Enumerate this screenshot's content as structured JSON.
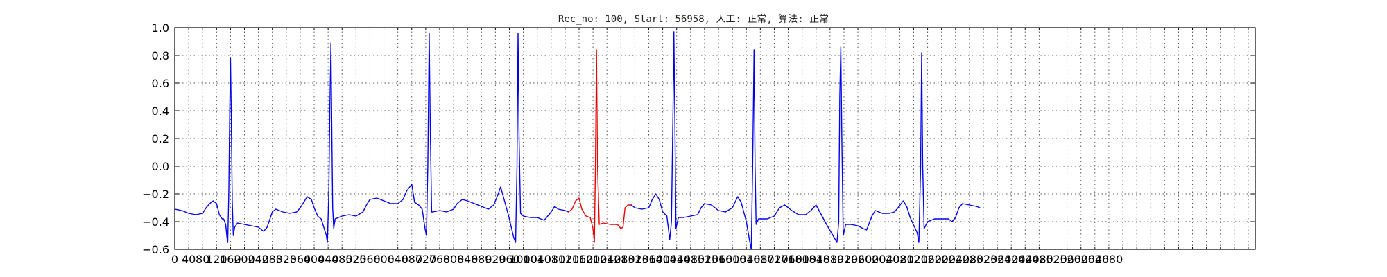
{
  "chart_data": {
    "type": "line",
    "title": "Rec_no: 100, Start: 56958, 人工: 正常, 算法: 正常",
    "xlabel": "",
    "ylabel": "",
    "xlim": [
      0,
      3100
    ],
    "ylim": [
      -0.6,
      1.0
    ],
    "grid": true,
    "legend": "none",
    "y_ticks": [
      -0.6,
      -0.4,
      -0.2,
      0.0,
      0.2,
      0.4,
      0.6,
      0.8,
      1.0
    ],
    "y_tick_labels": [
      "−0.6",
      "−0.4",
      "−0.2",
      "0.0",
      "0.2",
      "0.4",
      "0.6",
      "0.8",
      "1.0"
    ],
    "x_ticks": [
      0,
      40,
      80,
      120,
      160,
      200,
      240,
      280,
      320,
      360,
      400,
      440,
      480,
      520,
      560,
      600,
      640,
      680,
      720,
      760,
      800,
      840,
      880,
      920,
      960,
      1000,
      1040,
      1080,
      1120,
      1160,
      1200,
      1240,
      1280,
      1320,
      1360,
      1400,
      1440,
      1480,
      1520,
      1560,
      1600,
      1640,
      1680,
      1720,
      1760,
      1800,
      1840,
      1880,
      1920,
      1960,
      2000,
      2040,
      2080,
      2120,
      2160,
      2200,
      2240,
      2280,
      2320,
      2360,
      2400,
      2440,
      2480,
      2520,
      2560,
      2600,
      2640,
      2680
    ],
    "x_tick_labels": [
      "0",
      "40",
      "80",
      "120",
      "160",
      "200",
      "240",
      "280",
      "320",
      "360",
      "400",
      "440",
      "480",
      "520",
      "560",
      "600",
      "640",
      "680",
      "720",
      "760",
      "800",
      "840",
      "880",
      "920",
      "960",
      "1000",
      "1040",
      "1080",
      "1120",
      "1160",
      "1200",
      "1240",
      "1280",
      "1320",
      "1360",
      "1400",
      "1440",
      "1480",
      "1520",
      "1560",
      "1600",
      "1640",
      "1680",
      "1720",
      "1760",
      "1800",
      "1840",
      "1880",
      "1920",
      "1960",
      "2000",
      "2040",
      "2080",
      "2120",
      "2160",
      "2200",
      "2240",
      "2280",
      "2320",
      "2360",
      "2400",
      "2440",
      "2480",
      "2520",
      "2560",
      "2600",
      "2640",
      "2680"
    ],
    "x_grid": [
      0,
      40,
      80,
      120,
      160,
      200,
      240,
      280,
      320,
      360,
      400,
      440,
      480,
      520,
      560,
      600,
      640,
      680,
      720,
      760,
      800,
      840,
      880,
      920,
      960,
      1000,
      1040,
      1080,
      1120,
      1160,
      1200,
      1240,
      1280,
      1320,
      1360,
      1400,
      1440,
      1480,
      1520,
      1560,
      1600,
      1640,
      1680,
      1720,
      1760,
      1800,
      1840,
      1880,
      1920,
      1960,
      2000,
      2040,
      2080,
      2120,
      2160,
      2200,
      2240,
      2280,
      2320,
      2360,
      2400,
      2440,
      2480,
      2520,
      2560,
      2600,
      2640,
      2680,
      2720,
      2760,
      2800,
      2840,
      2880,
      2920,
      2960,
      3000,
      3040,
      3080
    ],
    "series": [
      {
        "color": "#0000ee",
        "segments": [
          [
            [
              0,
              -0.31
            ],
            [
              20,
              -0.32
            ],
            [
              40,
              -0.34
            ],
            [
              60,
              -0.35
            ],
            [
              80,
              -0.34
            ],
            [
              90,
              -0.3
            ],
            [
              100,
              -0.27
            ],
            [
              110,
              -0.25
            ],
            [
              120,
              -0.27
            ],
            [
              128,
              -0.35
            ],
            [
              136,
              -0.38
            ],
            [
              140,
              -0.38
            ],
            [
              146,
              -0.42
            ],
            [
              150,
              -0.52
            ],
            [
              152,
              -0.55
            ],
            [
              155,
              -0.2
            ],
            [
              158,
              0.45
            ],
            [
              160,
              0.78
            ],
            [
              162,
              0.4
            ],
            [
              165,
              -0.25
            ],
            [
              168,
              -0.5
            ],
            [
              172,
              -0.44
            ],
            [
              180,
              -0.41
            ],
            [
              200,
              -0.42
            ],
            [
              220,
              -0.43
            ],
            [
              240,
              -0.44
            ],
            [
              250,
              -0.46
            ],
            [
              255,
              -0.47
            ],
            [
              265,
              -0.44
            ],
            [
              280,
              -0.33
            ],
            [
              290,
              -0.31
            ],
            [
              310,
              -0.33
            ],
            [
              330,
              -0.34
            ],
            [
              350,
              -0.33
            ],
            [
              360,
              -0.3
            ],
            [
              370,
              -0.26
            ],
            [
              380,
              -0.22
            ],
            [
              392,
              -0.24
            ],
            [
              400,
              -0.3
            ],
            [
              410,
              -0.36
            ],
            [
              420,
              -0.38
            ],
            [
              435,
              -0.5
            ],
            [
              438,
              -0.55
            ],
            [
              442,
              -0.2
            ],
            [
              445,
              0.4
            ],
            [
              448,
              0.89
            ],
            [
              450,
              0.4
            ],
            [
              453,
              -0.3
            ],
            [
              456,
              -0.45
            ],
            [
              460,
              -0.38
            ],
            [
              480,
              -0.36
            ],
            [
              500,
              -0.35
            ],
            [
              520,
              -0.36
            ],
            [
              540,
              -0.33
            ],
            [
              550,
              -0.28
            ],
            [
              560,
              -0.24
            ],
            [
              580,
              -0.23
            ],
            [
              600,
              -0.25
            ],
            [
              620,
              -0.27
            ],
            [
              640,
              -0.27
            ],
            [
              655,
              -0.24
            ],
            [
              665,
              -0.18
            ],
            [
              680,
              -0.13
            ],
            [
              688,
              -0.26
            ],
            [
              700,
              -0.28
            ],
            [
              710,
              -0.31
            ],
            [
              718,
              -0.45
            ],
            [
              722,
              -0.5
            ],
            [
              726,
              0.0
            ],
            [
              730,
              0.96
            ],
            [
              733,
              0.3
            ],
            [
              737,
              -0.33
            ],
            [
              740,
              -0.33
            ],
            [
              760,
              -0.32
            ],
            [
              780,
              -0.33
            ],
            [
              800,
              -0.31
            ],
            [
              810,
              -0.27
            ],
            [
              825,
              -0.24
            ],
            [
              840,
              -0.25
            ],
            [
              860,
              -0.27
            ],
            [
              880,
              -0.29
            ],
            [
              900,
              -0.31
            ],
            [
              915,
              -0.28
            ],
            [
              925,
              -0.22
            ],
            [
              935,
              -0.15
            ],
            [
              945,
              -0.24
            ],
            [
              958,
              -0.36
            ],
            [
              972,
              -0.51
            ],
            [
              978,
              -0.55
            ],
            [
              982,
              0.0
            ],
            [
              985,
              0.96
            ],
            [
              988,
              0.2
            ],
            [
              992,
              -0.34
            ],
            [
              1000,
              -0.36
            ],
            [
              1020,
              -0.37
            ],
            [
              1040,
              -0.37
            ],
            [
              1060,
              -0.39
            ],
            [
              1080,
              -0.33
            ],
            [
              1090,
              -0.29
            ],
            [
              1100,
              -0.31
            ],
            [
              1120,
              -0.32
            ],
            [
              1130,
              -0.33
            ]
          ]
        ]
      },
      {
        "color": "#ee0000",
        "segments": [
          [
            [
              1130,
              -0.33
            ],
            [
              1140,
              -0.31
            ],
            [
              1150,
              -0.25
            ],
            [
              1160,
              -0.23
            ],
            [
              1168,
              -0.31
            ],
            [
              1180,
              -0.36
            ],
            [
              1192,
              -0.37
            ],
            [
              1200,
              -0.45
            ],
            [
              1204,
              -0.55
            ],
            [
              1207,
              0.0
            ],
            [
              1210,
              0.84
            ],
            [
              1213,
              0.0
            ],
            [
              1218,
              -0.42
            ],
            [
              1230,
              -0.41
            ],
            [
              1250,
              -0.42
            ],
            [
              1270,
              -0.42
            ],
            [
              1280,
              -0.45
            ],
            [
              1286,
              -0.44
            ],
            [
              1292,
              -0.3
            ],
            [
              1300,
              -0.28
            ],
            [
              1310,
              -0.28
            ]
          ]
        ]
      },
      {
        "color": "#0000ee",
        "segments": [
          [
            [
              1310,
              -0.28
            ],
            [
              1320,
              -0.3
            ],
            [
              1340,
              -0.31
            ],
            [
              1360,
              -0.3
            ],
            [
              1370,
              -0.24
            ],
            [
              1380,
              -0.2
            ],
            [
              1390,
              -0.24
            ],
            [
              1400,
              -0.33
            ],
            [
              1412,
              -0.36
            ],
            [
              1420,
              -0.53
            ],
            [
              1425,
              -0.4
            ],
            [
              1430,
              0.5
            ],
            [
              1432,
              0.97
            ],
            [
              1435,
              0.3
            ],
            [
              1438,
              -0.45
            ],
            [
              1445,
              -0.37
            ],
            [
              1460,
              -0.37
            ],
            [
              1480,
              -0.36
            ],
            [
              1500,
              -0.35
            ],
            [
              1510,
              -0.3
            ],
            [
              1520,
              -0.27
            ],
            [
              1540,
              -0.28
            ],
            [
              1560,
              -0.32
            ],
            [
              1580,
              -0.33
            ],
            [
              1600,
              -0.3
            ],
            [
              1615,
              -0.22
            ],
            [
              1625,
              -0.26
            ],
            [
              1640,
              -0.4
            ],
            [
              1650,
              -0.55
            ],
            [
              1654,
              -0.6
            ],
            [
              1658,
              0.0
            ],
            [
              1662,
              0.84
            ],
            [
              1665,
              0.0
            ],
            [
              1668,
              -0.42
            ],
            [
              1675,
              -0.38
            ],
            [
              1700,
              -0.38
            ],
            [
              1720,
              -0.36
            ],
            [
              1735,
              -0.3
            ],
            [
              1750,
              -0.28
            ],
            [
              1770,
              -0.32
            ],
            [
              1790,
              -0.35
            ],
            [
              1810,
              -0.35
            ],
            [
              1825,
              -0.32
            ],
            [
              1840,
              -0.28
            ],
            [
              1855,
              -0.35
            ],
            [
              1870,
              -0.42
            ],
            [
              1900,
              -0.55
            ],
            [
              1905,
              -0.4
            ],
            [
              1908,
              0.5
            ],
            [
              1911,
              0.86
            ],
            [
              1914,
              0.2
            ],
            [
              1918,
              -0.5
            ],
            [
              1925,
              -0.42
            ],
            [
              1940,
              -0.42
            ],
            [
              1960,
              -0.43
            ],
            [
              1975,
              -0.45
            ],
            [
              1985,
              -0.46
            ],
            [
              2000,
              -0.36
            ],
            [
              2010,
              -0.32
            ],
            [
              2030,
              -0.34
            ],
            [
              2050,
              -0.34
            ],
            [
              2065,
              -0.33
            ],
            [
              2075,
              -0.3
            ],
            [
              2090,
              -0.25
            ],
            [
              2100,
              -0.29
            ],
            [
              2110,
              -0.37
            ],
            [
              2130,
              -0.48
            ],
            [
              2135,
              -0.55
            ],
            [
              2140,
              0.0
            ],
            [
              2143,
              0.82
            ],
            [
              2146,
              0.0
            ],
            [
              2150,
              -0.45
            ],
            [
              2160,
              -0.4
            ],
            [
              2180,
              -0.38
            ],
            [
              2200,
              -0.38
            ],
            [
              2220,
              -0.38
            ],
            [
              2230,
              -0.4
            ],
            [
              2240,
              -0.37
            ],
            [
              2250,
              -0.3
            ],
            [
              2260,
              -0.27
            ],
            [
              2280,
              -0.28
            ],
            [
              2300,
              -0.29
            ],
            [
              2310,
              -0.3
            ]
          ]
        ]
      }
    ]
  }
}
